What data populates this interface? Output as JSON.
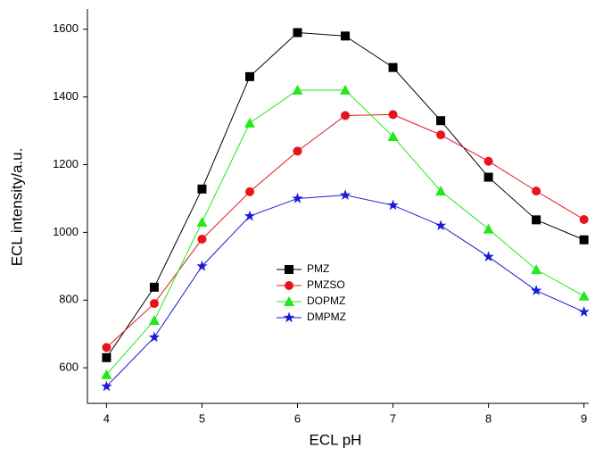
{
  "chart_data": {
    "type": "line",
    "x_label": "ECL pH",
    "y_label": "ECL intensity/a.u.",
    "x": [
      4,
      4.5,
      5,
      5.5,
      6,
      6.5,
      7,
      7.5,
      8,
      8.5,
      9
    ],
    "xlim": [
      3.8,
      9.05
    ],
    "xticks": [
      4,
      5,
      6,
      7,
      8,
      9
    ],
    "ylim": [
      495,
      1660
    ],
    "yticks": [
      600,
      800,
      1000,
      1200,
      1400,
      1600
    ],
    "grid": false,
    "legend": "center",
    "series": [
      {
        "name": "PMZ",
        "color": "#000000",
        "marker": "square",
        "values": [
          630,
          838,
          1128,
          1460,
          1590,
          1580,
          1487,
          1330,
          1163,
          1037,
          978
        ]
      },
      {
        "name": "PMZSO",
        "color": "#e8141b",
        "marker": "circle",
        "values": [
          660,
          790,
          980,
          1120,
          1240,
          1345,
          1348,
          1288,
          1210,
          1122,
          1038
        ]
      },
      {
        "name": "DOPMZ",
        "color": "#22e81c",
        "marker": "triangle",
        "values": [
          580,
          740,
          1030,
          1323,
          1420,
          1420,
          1283,
          1122,
          1010,
          890,
          812
        ]
      },
      {
        "name": "DMPMZ",
        "color": "#1b1bd6",
        "marker": "star",
        "values": [
          545,
          690,
          900,
          1048,
          1100,
          1110,
          1080,
          1020,
          928,
          828,
          765
        ]
      }
    ]
  }
}
